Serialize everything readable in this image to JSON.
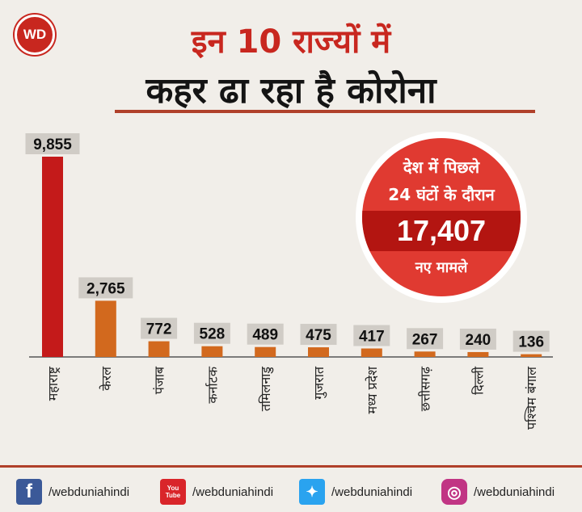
{
  "logo": {
    "text": "WD"
  },
  "title": {
    "line1": "इन 10 राज्यों में",
    "line2": "कहर ढा रहा है कोरोना"
  },
  "badge": {
    "line1": "देश में पिछले",
    "line2": "24 घंटों के दौरान",
    "number": "17,407",
    "line4": "नए मामले"
  },
  "chart_data": {
    "type": "bar",
    "title": "इन 10 राज्यों में कहर ढा रहा है कोरोना",
    "categories": [
      "महाराष्ट्र",
      "केरल",
      "पंजाब",
      "कर्नाटक",
      "तमिलनाडु",
      "गुजरात",
      "मध्य प्रदेश",
      "छत्तीसगढ़",
      "दिल्ली",
      "पश्चिम बंगाल"
    ],
    "values": [
      9855,
      2765,
      772,
      528,
      489,
      475,
      417,
      267,
      240,
      136
    ],
    "labels": [
      "9,855",
      "2,765",
      "772",
      "528",
      "489",
      "475",
      "417",
      "267",
      "240",
      "136"
    ],
    "ylim": [
      0,
      9855
    ],
    "grid": false,
    "colors": {
      "highlight": "#c41a1a",
      "bar": "#d2691e",
      "label_bg": "#d0ccc6",
      "axis": "#555555"
    }
  },
  "footer": {
    "items": [
      {
        "icon": "facebook-icon",
        "glyph": "f",
        "color": "#3b5998",
        "handle": "/webduniahindi"
      },
      {
        "icon": "youtube-icon",
        "glyph": "You Tube",
        "color": "#d9252a",
        "handle": "/webduniahindi"
      },
      {
        "icon": "twitter-icon",
        "glyph": "✦",
        "color": "#2aa3ef",
        "handle": "/webduniahindi"
      },
      {
        "icon": "instagram-icon",
        "glyph": "◎",
        "color": "#c13584",
        "handle": "/webduniahindi"
      }
    ]
  }
}
